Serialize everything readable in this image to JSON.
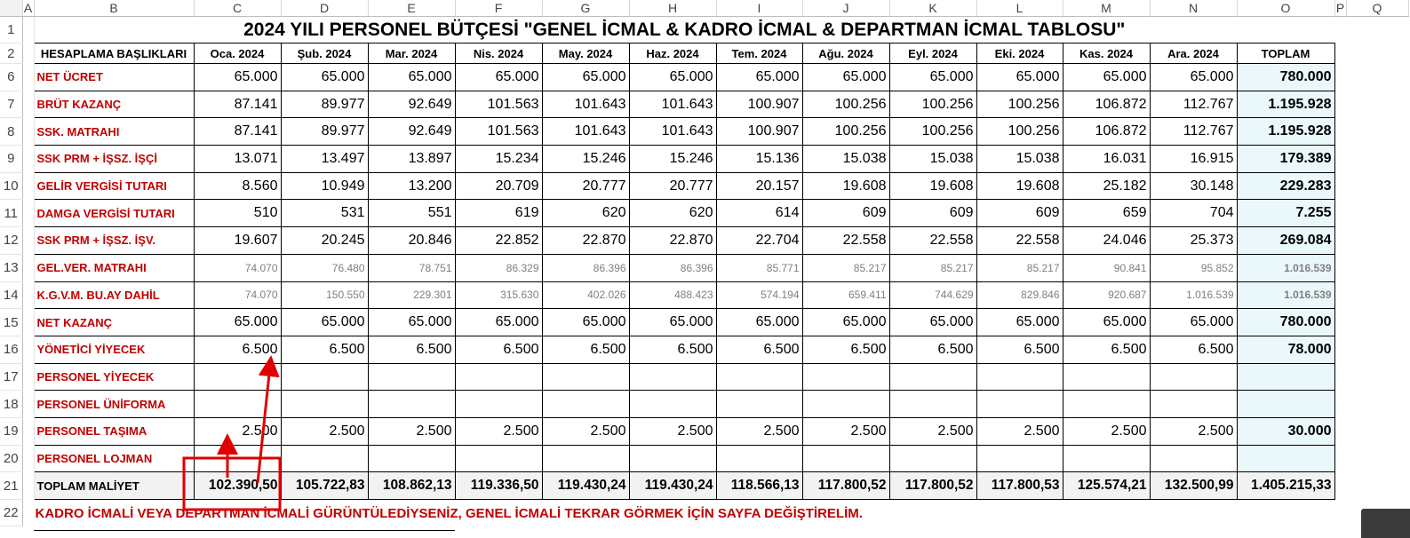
{
  "spreadsheet": {
    "column_letters": [
      "A",
      "B",
      "C",
      "D",
      "E",
      "F",
      "G",
      "H",
      "I",
      "J",
      "K",
      "L",
      "M",
      "N",
      "O",
      "P",
      "Q"
    ],
    "title": "2024 YILI PERSONEL BÜTÇESİ \"GENEL İCMAL & KADRO İCMAL & DEPARTMAN İCMAL TABLOSU\"",
    "header_label": "HESAPLAMA BAŞLIKLARI",
    "months": [
      "Oca. 2024",
      "Şub. 2024",
      "Mar. 2024",
      "Nis. 2024",
      "May. 2024",
      "Haz. 2024",
      "Tem. 2024",
      "Ağu. 2024",
      "Eyl. 2024",
      "Eki. 2024",
      "Kas. 2024",
      "Ara. 2024"
    ],
    "total_header": "TOPLAM",
    "row_numbers": {
      "title": "1",
      "header": "2",
      "note": "22"
    },
    "rows": [
      {
        "num": "6",
        "label": "NET ÜCRET",
        "values": [
          "65.000",
          "65.000",
          "65.000",
          "65.000",
          "65.000",
          "65.000",
          "65.000",
          "65.000",
          "65.000",
          "65.000",
          "65.000",
          "65.000"
        ],
        "total": "780.000"
      },
      {
        "num": "7",
        "label": "BRÜT KAZANÇ",
        "values": [
          "87.141",
          "89.977",
          "92.649",
          "101.563",
          "101.643",
          "101.643",
          "100.907",
          "100.256",
          "100.256",
          "100.256",
          "106.872",
          "112.767"
        ],
        "total": "1.195.928"
      },
      {
        "num": "8",
        "label": "SSK. MATRAHI",
        "values": [
          "87.141",
          "89.977",
          "92.649",
          "101.563",
          "101.643",
          "101.643",
          "100.907",
          "100.256",
          "100.256",
          "100.256",
          "106.872",
          "112.767"
        ],
        "total": "1.195.928"
      },
      {
        "num": "9",
        "label": "SSK PRM + İŞSZ. İŞÇİ",
        "values": [
          "13.071",
          "13.497",
          "13.897",
          "15.234",
          "15.246",
          "15.246",
          "15.136",
          "15.038",
          "15.038",
          "15.038",
          "16.031",
          "16.915"
        ],
        "total": "179.389"
      },
      {
        "num": "10",
        "label": "GELİR VERGİSİ TUTARI",
        "values": [
          "8.560",
          "10.949",
          "13.200",
          "20.709",
          "20.777",
          "20.777",
          "20.157",
          "19.608",
          "19.608",
          "19.608",
          "25.182",
          "30.148"
        ],
        "total": "229.283"
      },
      {
        "num": "11",
        "label": "DAMGA VERGİSİ TUTARI",
        "values": [
          "510",
          "531",
          "551",
          "619",
          "620",
          "620",
          "614",
          "609",
          "609",
          "609",
          "659",
          "704"
        ],
        "total": "7.255"
      },
      {
        "num": "12",
        "label": "SSK PRM + İŞSZ. İŞV.",
        "values": [
          "19.607",
          "20.245",
          "20.846",
          "22.852",
          "22.870",
          "22.870",
          "22.704",
          "22.558",
          "22.558",
          "22.558",
          "24.046",
          "25.373"
        ],
        "total": "269.084"
      },
      {
        "num": "13",
        "label": "GEL.VER. MATRAHI",
        "small": true,
        "values": [
          "74.070",
          "76.480",
          "78.751",
          "86.329",
          "86.396",
          "86.396",
          "85.771",
          "85.217",
          "85.217",
          "85.217",
          "90.841",
          "95.852"
        ],
        "total": "1.016.539"
      },
      {
        "num": "14",
        "label": "K.G.V.M. BU.AY DAHİL",
        "small": true,
        "values": [
          "74.070",
          "150.550",
          "229.301",
          "315.630",
          "402.026",
          "488.423",
          "574.194",
          "659.411",
          "744.629",
          "829.846",
          "920.687",
          "1.016.539"
        ],
        "total": "1.016.539"
      },
      {
        "num": "15",
        "label": "NET KAZANÇ",
        "values": [
          "65.000",
          "65.000",
          "65.000",
          "65.000",
          "65.000",
          "65.000",
          "65.000",
          "65.000",
          "65.000",
          "65.000",
          "65.000",
          "65.000"
        ],
        "total": "780.000"
      },
      {
        "num": "16",
        "label": "YÖNETİCİ YİYECEK",
        "values": [
          "6.500",
          "6.500",
          "6.500",
          "6.500",
          "6.500",
          "6.500",
          "6.500",
          "6.500",
          "6.500",
          "6.500",
          "6.500",
          "6.500"
        ],
        "total": "78.000"
      },
      {
        "num": "17",
        "label": "PERSONEL YİYECEK",
        "values": [
          "",
          "",
          "",
          "",
          "",
          "",
          "",
          "",
          "",
          "",
          "",
          ""
        ],
        "total": ""
      },
      {
        "num": "18",
        "label": "PERSONEL ÜNİFORMA",
        "values": [
          "",
          "",
          "",
          "",
          "",
          "",
          "",
          "",
          "",
          "",
          "",
          ""
        ],
        "total": ""
      },
      {
        "num": "19",
        "label": "PERSONEL TAŞIMA",
        "values": [
          "2.500",
          "2.500",
          "2.500",
          "2.500",
          "2.500",
          "2.500",
          "2.500",
          "2.500",
          "2.500",
          "2.500",
          "2.500",
          "2.500"
        ],
        "total": "30.000"
      },
      {
        "num": "20",
        "label": "PERSONEL LOJMAN",
        "values": [
          "",
          "",
          "",
          "",
          "",
          "",
          "",
          "",
          "",
          "",
          "",
          ""
        ],
        "total": ""
      }
    ],
    "total_row": {
      "num": "21",
      "label": "TOPLAM MALİYET",
      "values": [
        "102.390,50",
        "105.722,83",
        "108.862,13",
        "119.336,50",
        "119.430,24",
        "119.430,24",
        "118.566,13",
        "117.800,52",
        "117.800,52",
        "117.800,53",
        "125.574,21",
        "132.500,99"
      ],
      "total": "1.405.215,33"
    },
    "note": "KADRO İCMALİ VEYA DEPARTMAN İCMALİ GÜRÜNTÜLEDİYSENİZ, GENEL İCMALİ TEKRAR GÖRMEK İÇİN SAYFA DEĞİŞTİRELİM.",
    "accent_red": "#c00000",
    "total_fill": "#ebf8fb"
  }
}
